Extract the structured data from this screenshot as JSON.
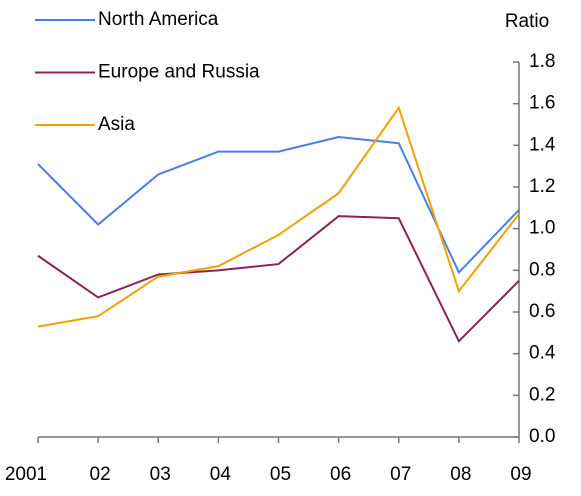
{
  "chart_data": {
    "type": "line",
    "y_axis_label": "Ratio",
    "categories": [
      "2001",
      "02",
      "03",
      "04",
      "05",
      "06",
      "07",
      "08",
      "09"
    ],
    "series": [
      {
        "name": "North America",
        "color": "#4a7ee6",
        "values": [
          1.31,
          1.02,
          1.26,
          1.37,
          1.37,
          1.44,
          1.41,
          0.79,
          1.09
        ]
      },
      {
        "name": "Europe and Russia",
        "color": "#8b2456",
        "values": [
          0.87,
          0.67,
          0.78,
          0.8,
          0.83,
          1.06,
          1.05,
          0.46,
          0.75
        ]
      },
      {
        "name": "Asia",
        "color": "#f4a000",
        "values": [
          0.53,
          0.58,
          0.77,
          0.82,
          0.97,
          1.17,
          1.58,
          0.7,
          1.07
        ]
      }
    ],
    "ylim": [
      0,
      1.8
    ],
    "yticks": [
      {
        "value": 0,
        "label": "0.0"
      },
      0.2,
      0.4,
      0.6,
      0.8,
      {
        "value": 1,
        "label": "1.0"
      },
      1.2,
      1.4,
      1.6,
      1.8
    ],
    "grid": false,
    "legend": "top-left"
  }
}
